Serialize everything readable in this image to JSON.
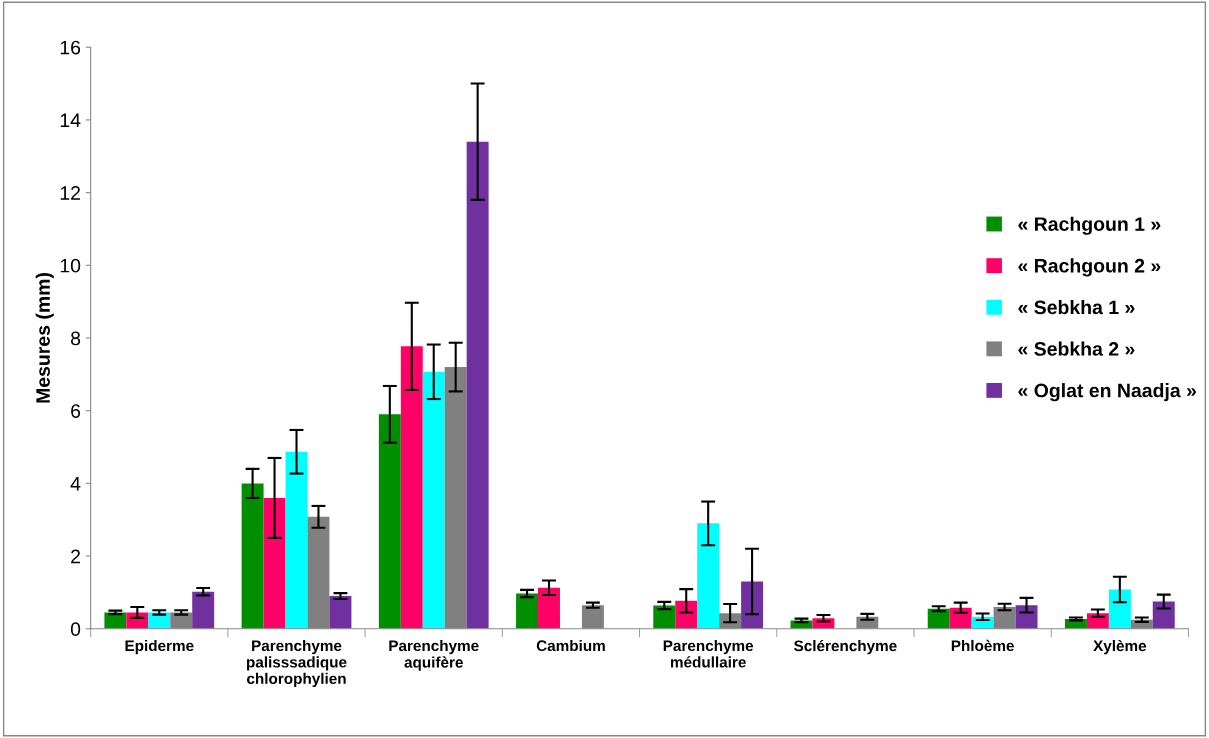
{
  "chart_data": {
    "type": "bar",
    "ylabel": "Mesures (mm)",
    "categories": [
      "Epiderme",
      "Parenchyme\npalisssadique\nchlorophylien",
      "Parenchyme\naquifère",
      "Cambium",
      "Parenchyme\nmédullaire",
      "Sclérenchyme",
      "Phloème",
      "Xylème"
    ],
    "ylim": [
      0,
      16
    ],
    "yticks": [
      0,
      2,
      4,
      6,
      8,
      10,
      12,
      14,
      16
    ],
    "grid": false,
    "legend": "right",
    "series": [
      {
        "name": "« Rachgoun 1 »",
        "color": "#008f00",
        "values": [
          0.45,
          4.0,
          5.9,
          0.97,
          0.64,
          0.23,
          0.55,
          0.27
        ],
        "errors": [
          0.05,
          0.4,
          0.78,
          0.1,
          0.1,
          0.05,
          0.07,
          0.04
        ]
      },
      {
        "name": "« Rachgoun 2 »",
        "color": "#ff0066",
        "values": [
          0.45,
          3.6,
          7.77,
          1.13,
          0.77,
          0.29,
          0.58,
          0.43
        ],
        "errors": [
          0.15,
          1.1,
          1.2,
          0.2,
          0.32,
          0.09,
          0.14,
          0.1
        ]
      },
      {
        "name": "« Sebkha 1 »",
        "color": "#00ffff",
        "values": [
          0.45,
          4.87,
          7.07,
          null,
          2.9,
          null,
          0.33,
          1.08
        ],
        "errors": [
          0.06,
          0.6,
          0.75,
          null,
          0.6,
          null,
          0.09,
          0.35
        ]
      },
      {
        "name": "« Sebkha 2 »",
        "color": "#808080",
        "values": [
          0.45,
          3.08,
          7.2,
          0.65,
          0.43,
          0.33,
          0.6,
          0.25
        ],
        "errors": [
          0.06,
          0.3,
          0.67,
          0.07,
          0.25,
          0.08,
          0.09,
          0.06
        ]
      },
      {
        "name": "« Oglat en Naadja »",
        "color": "#7030a0",
        "values": [
          1.02,
          0.9,
          13.4,
          null,
          1.3,
          null,
          0.65,
          0.75
        ],
        "errors": [
          0.1,
          0.08,
          1.6,
          null,
          0.9,
          null,
          0.2,
          0.19
        ]
      }
    ]
  }
}
